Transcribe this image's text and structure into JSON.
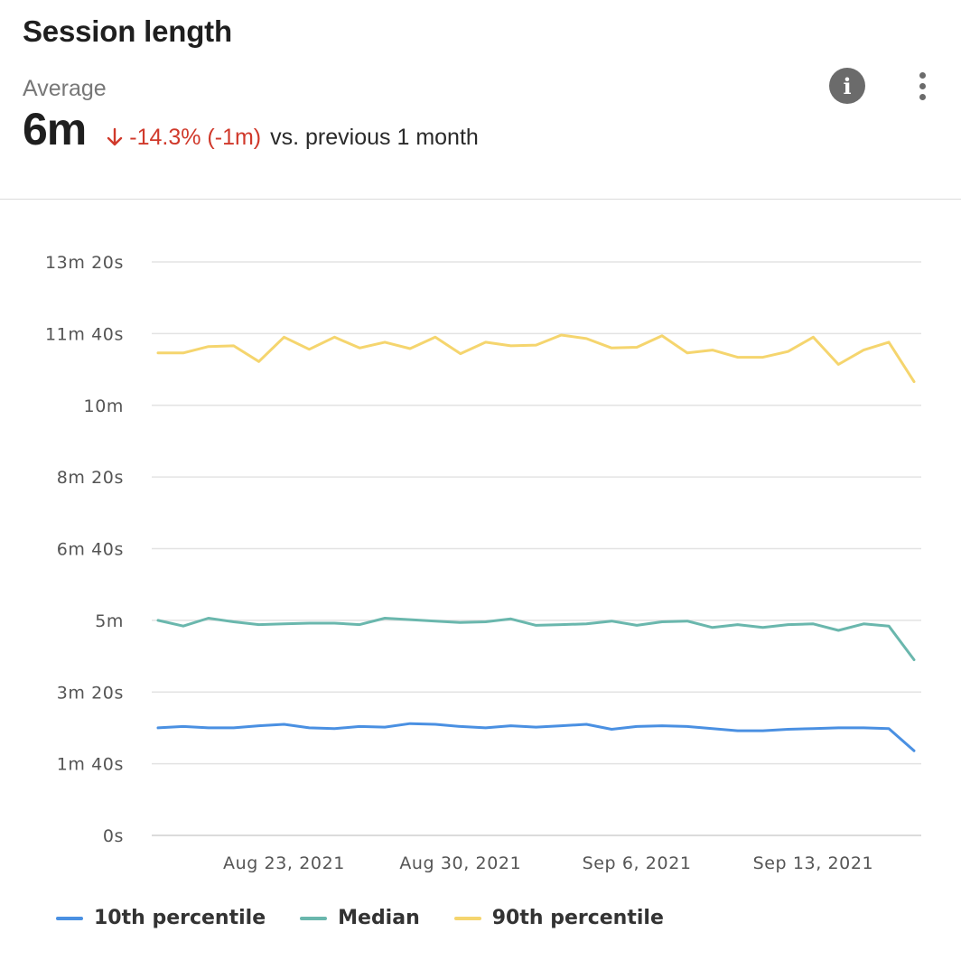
{
  "header": {
    "title": "Session length",
    "average_label": "Average",
    "average_value": "6m",
    "delta_text": "-14.3% (-1m)",
    "comparison_text": "vs. previous 1 month",
    "delta_direction": "down",
    "delta_color": "#d0392b"
  },
  "toolbar": {
    "info_icon": "info-icon",
    "info_glyph": "i",
    "more_icon": "more-vertical-icon"
  },
  "chart_data": {
    "type": "line",
    "y_unit": "seconds",
    "ylim": [
      0,
      800
    ],
    "y_ticks": [
      0,
      100,
      200,
      300,
      400,
      500,
      600,
      700,
      800
    ],
    "y_tick_labels": [
      "0s",
      "1m 40s",
      "3m 20s",
      "5m",
      "6m 40s",
      "8m 20s",
      "10m",
      "11m 40s",
      "13m 20s"
    ],
    "x": [
      "2021-08-18",
      "2021-08-19",
      "2021-08-20",
      "2021-08-21",
      "2021-08-22",
      "2021-08-23",
      "2021-08-24",
      "2021-08-25",
      "2021-08-26",
      "2021-08-27",
      "2021-08-28",
      "2021-08-29",
      "2021-08-30",
      "2021-08-31",
      "2021-09-01",
      "2021-09-02",
      "2021-09-03",
      "2021-09-04",
      "2021-09-05",
      "2021-09-06",
      "2021-09-07",
      "2021-09-08",
      "2021-09-09",
      "2021-09-10",
      "2021-09-11",
      "2021-09-12",
      "2021-09-13",
      "2021-09-14",
      "2021-09-15",
      "2021-09-16",
      "2021-09-17"
    ],
    "x_tick_labels": [
      "Aug 23, 2021",
      "Aug 30, 2021",
      "Sep 6, 2021",
      "Sep 13, 2021"
    ],
    "x_tick_indices": [
      5,
      12,
      19,
      26
    ],
    "grid": true,
    "legend_position": "bottom-left",
    "series": [
      {
        "name": "10th percentile",
        "color": "#4a90e2",
        "values": [
          150,
          152,
          150,
          150,
          153,
          155,
          150,
          149,
          152,
          151,
          156,
          155,
          152,
          150,
          153,
          151,
          153,
          155,
          148,
          152,
          153,
          152,
          149,
          146,
          146,
          148,
          149,
          150,
          150,
          149,
          118
        ]
      },
      {
        "name": "Median",
        "color": "#6ab7ad",
        "values": [
          300,
          292,
          303,
          298,
          294,
          295,
          296,
          296,
          294,
          303,
          301,
          299,
          297,
          298,
          302,
          293,
          294,
          295,
          299,
          293,
          298,
          299,
          290,
          294,
          290,
          294,
          295,
          286,
          295,
          292,
          245
        ]
      },
      {
        "name": "90th percentile",
        "color": "#f5d56e",
        "values": [
          673,
          673,
          682,
          683,
          661,
          695,
          678,
          695,
          680,
          688,
          679,
          695,
          672,
          688,
          683,
          684,
          698,
          693,
          680,
          681,
          697,
          673,
          677,
          667,
          667,
          675,
          695,
          657,
          677,
          688,
          633
        ]
      }
    ]
  }
}
